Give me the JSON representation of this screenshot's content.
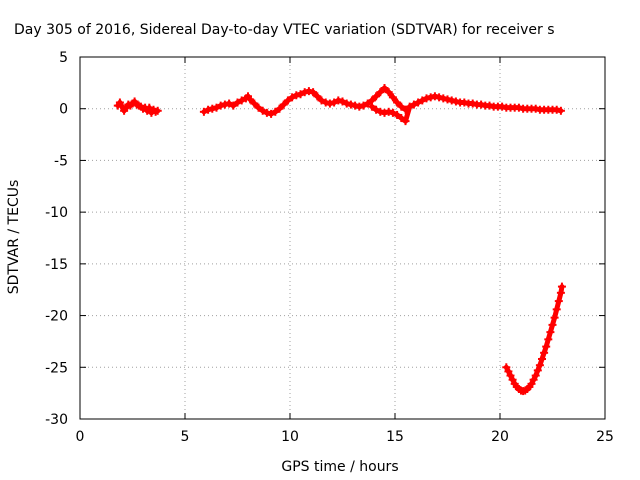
{
  "chart_data": {
    "type": "scatter",
    "title": "Day 305 of 2016, Sidereal Day-to-day VTEC variation (SDTVAR) for receiver s",
    "xlabel": "GPS time / hours",
    "ylabel": "SDTVAR / TECUs",
    "xlim": [
      0,
      25
    ],
    "ylim": [
      -30,
      5
    ],
    "x_ticks": [
      "0",
      "5",
      "10",
      "15",
      "20",
      "25"
    ],
    "y_ticks": [
      "5",
      "0",
      "-5",
      "-10",
      "-15",
      "-20",
      "-25",
      "-30"
    ],
    "grid": true,
    "marker": "plus",
    "color": "#ff0000",
    "series": [
      {
        "points": [
          [
            1.8,
            0.3
          ],
          [
            1.9,
            0.6
          ],
          [
            2.0,
            0.2
          ],
          [
            2.1,
            -0.2
          ],
          [
            2.2,
            0.1
          ],
          [
            2.3,
            0.4
          ],
          [
            2.4,
            0.3
          ],
          [
            2.5,
            0.5
          ],
          [
            2.6,
            0.7
          ],
          [
            2.7,
            0.4
          ],
          [
            2.8,
            0.3
          ],
          [
            2.9,
            0.2
          ],
          [
            3.0,
            0.0
          ],
          [
            3.1,
            0.1
          ],
          [
            3.2,
            -0.2
          ],
          [
            3.3,
            0.1
          ],
          [
            3.4,
            -0.4
          ],
          [
            3.5,
            -0.1
          ],
          [
            3.6,
            -0.3
          ],
          [
            3.7,
            -0.2
          ],
          [
            5.9,
            -0.3
          ],
          [
            6.1,
            -0.1
          ],
          [
            6.3,
            0.0
          ],
          [
            6.5,
            0.1
          ],
          [
            6.7,
            0.3
          ],
          [
            6.9,
            0.4
          ],
          [
            7.1,
            0.5
          ],
          [
            7.3,
            0.3
          ],
          [
            7.5,
            0.6
          ],
          [
            7.7,
            0.8
          ],
          [
            7.9,
            1.0
          ],
          [
            8.0,
            1.2
          ],
          [
            8.1,
            0.9
          ],
          [
            8.3,
            0.5
          ],
          [
            8.5,
            0.1
          ],
          [
            8.7,
            -0.2
          ],
          [
            8.9,
            -0.4
          ],
          [
            9.1,
            -0.5
          ],
          [
            9.3,
            -0.3
          ],
          [
            9.5,
            0.0
          ],
          [
            9.7,
            0.4
          ],
          [
            9.9,
            0.8
          ],
          [
            10.1,
            1.1
          ],
          [
            10.3,
            1.3
          ],
          [
            10.5,
            1.4
          ],
          [
            10.7,
            1.6
          ],
          [
            10.9,
            1.7
          ],
          [
            11.1,
            1.6
          ],
          [
            11.3,
            1.2
          ],
          [
            11.5,
            0.8
          ],
          [
            11.7,
            0.6
          ],
          [
            11.9,
            0.5
          ],
          [
            12.1,
            0.6
          ],
          [
            12.3,
            0.8
          ],
          [
            12.5,
            0.7
          ],
          [
            12.7,
            0.5
          ],
          [
            12.9,
            0.4
          ],
          [
            13.1,
            0.3
          ],
          [
            13.3,
            0.2
          ],
          [
            13.5,
            0.3
          ],
          [
            13.7,
            0.5
          ],
          [
            13.9,
            0.8
          ],
          [
            14.1,
            1.2
          ],
          [
            14.3,
            1.6
          ],
          [
            14.5,
            2.0
          ],
          [
            14.7,
            1.6
          ],
          [
            14.9,
            1.1
          ],
          [
            15.1,
            0.6
          ],
          [
            15.3,
            0.2
          ],
          [
            15.5,
            -0.1
          ],
          [
            13.9,
            0.2
          ],
          [
            14.1,
            -0.1
          ],
          [
            14.3,
            -0.3
          ],
          [
            14.5,
            -0.4
          ],
          [
            14.7,
            -0.3
          ],
          [
            14.9,
            -0.4
          ],
          [
            15.1,
            -0.6
          ],
          [
            15.3,
            -0.9
          ],
          [
            15.5,
            -1.2
          ],
          [
            15.7,
            0.2
          ],
          [
            15.9,
            0.4
          ],
          [
            16.1,
            0.6
          ],
          [
            16.3,
            0.8
          ],
          [
            16.5,
            1.0
          ],
          [
            16.7,
            1.1
          ],
          [
            16.9,
            1.2
          ],
          [
            17.1,
            1.1
          ],
          [
            17.3,
            1.0
          ],
          [
            17.5,
            0.9
          ],
          [
            17.7,
            0.8
          ],
          [
            17.9,
            0.7
          ],
          [
            18.1,
            0.6
          ],
          [
            18.3,
            0.6
          ],
          [
            18.5,
            0.5
          ],
          [
            18.7,
            0.5
          ],
          [
            18.9,
            0.4
          ],
          [
            19.1,
            0.4
          ],
          [
            19.3,
            0.3
          ],
          [
            19.5,
            0.3
          ],
          [
            19.7,
            0.2
          ],
          [
            19.9,
            0.2
          ],
          [
            20.1,
            0.2
          ],
          [
            20.3,
            0.1
          ],
          [
            20.5,
            0.1
          ],
          [
            20.7,
            0.1
          ],
          [
            20.9,
            0.1
          ],
          [
            21.1,
            0.0
          ],
          [
            21.3,
            0.0
          ],
          [
            21.5,
            0.0
          ],
          [
            21.7,
            0.0
          ],
          [
            21.9,
            -0.1
          ],
          [
            22.1,
            -0.1
          ],
          [
            22.3,
            -0.1
          ],
          [
            22.5,
            -0.1
          ],
          [
            22.7,
            -0.1
          ],
          [
            22.9,
            -0.2
          ],
          [
            20.3,
            -25.0
          ],
          [
            20.4,
            -25.4
          ],
          [
            20.5,
            -25.8
          ],
          [
            20.6,
            -26.2
          ],
          [
            20.7,
            -26.6
          ],
          [
            20.8,
            -26.9
          ],
          [
            20.9,
            -27.1
          ],
          [
            21.0,
            -27.25
          ],
          [
            21.1,
            -27.3
          ],
          [
            21.2,
            -27.25
          ],
          [
            21.3,
            -27.1
          ],
          [
            21.4,
            -26.9
          ],
          [
            21.5,
            -26.6
          ],
          [
            21.6,
            -26.2
          ],
          [
            21.7,
            -25.8
          ],
          [
            21.8,
            -25.3
          ],
          [
            21.9,
            -24.8
          ],
          [
            22.0,
            -24.2
          ],
          [
            22.1,
            -23.6
          ],
          [
            22.2,
            -23.0
          ],
          [
            22.3,
            -22.3
          ],
          [
            22.4,
            -21.6
          ],
          [
            22.5,
            -20.9
          ],
          [
            22.6,
            -20.2
          ],
          [
            22.7,
            -19.4
          ],
          [
            22.8,
            -18.6
          ],
          [
            22.9,
            -17.8
          ],
          [
            22.95,
            -17.2
          ]
        ]
      }
    ]
  }
}
